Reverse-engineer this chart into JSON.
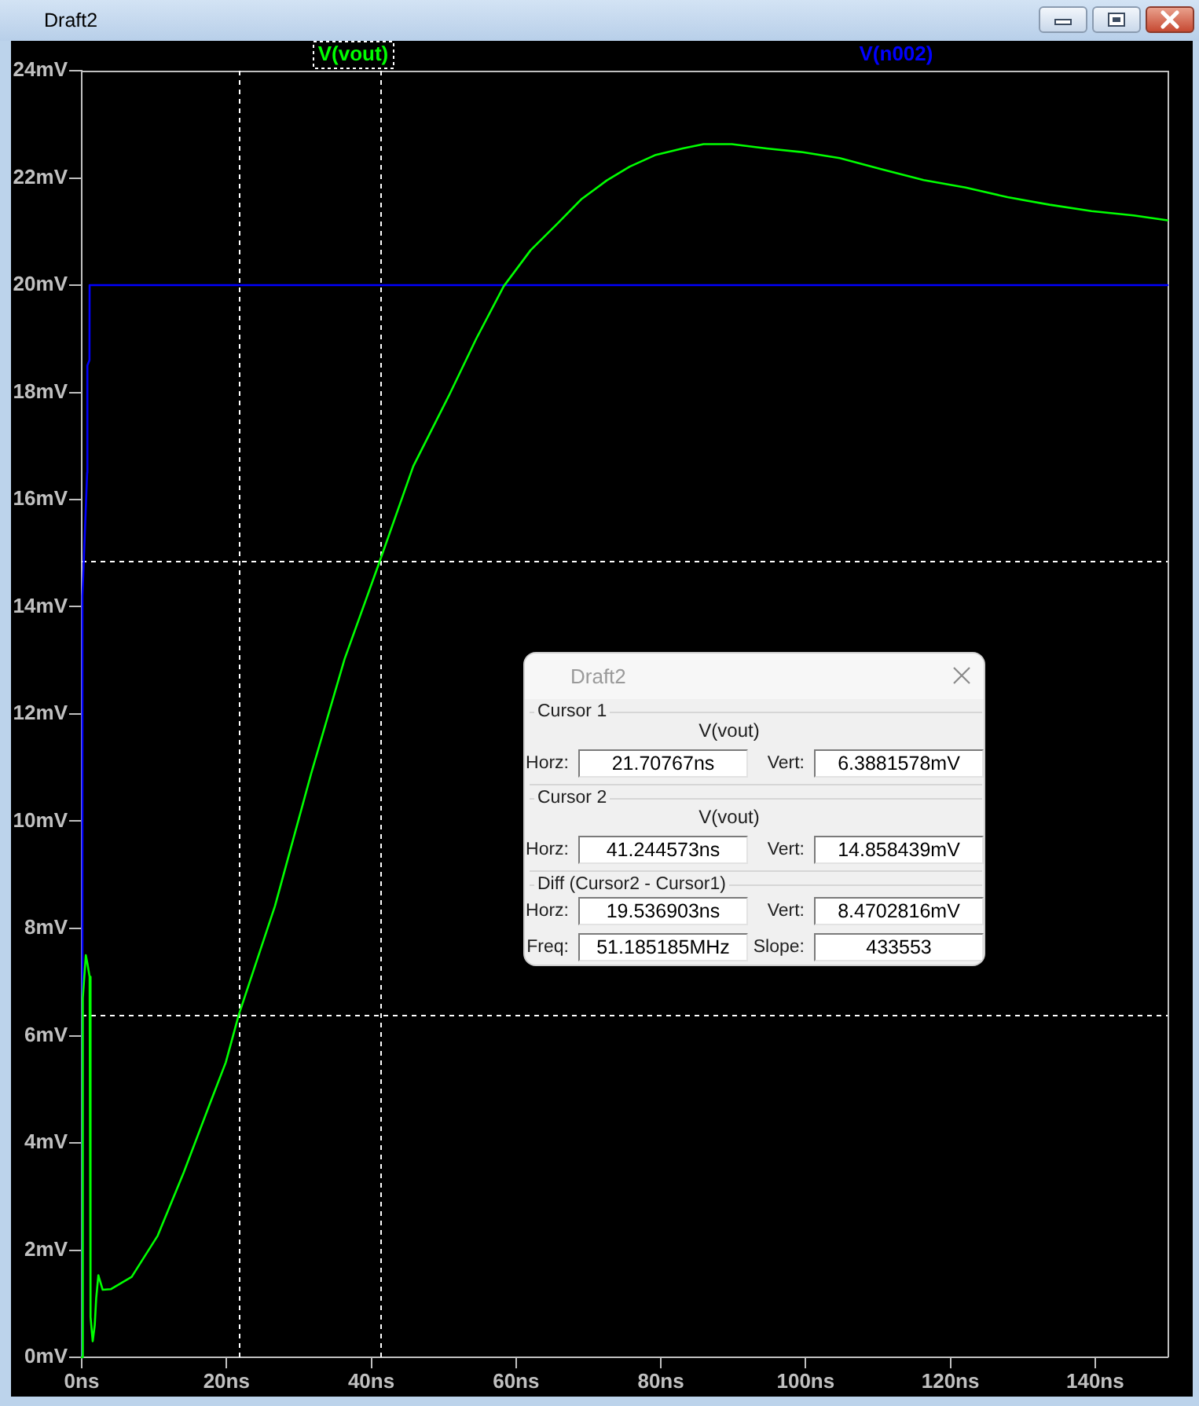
{
  "chart_data": {
    "type": "line",
    "title": "Draft2",
    "legend": "top",
    "xlim": [
      0,
      150
    ],
    "xticks": [
      {
        "value": 0,
        "label": "0ns"
      },
      {
        "value": 20,
        "label": "20ns"
      },
      {
        "value": 40,
        "label": "40ns"
      },
      {
        "value": 60,
        "label": "60ns"
      },
      {
        "value": 80,
        "label": "80ns"
      },
      {
        "value": 100,
        "label": "100ns"
      },
      {
        "value": 120,
        "label": "120ns"
      },
      {
        "value": 140,
        "label": "140ns"
      }
    ],
    "ylim": [
      0,
      24
    ],
    "yticks": [
      {
        "value": 0,
        "label": "0mV"
      },
      {
        "value": 2,
        "label": "2mV"
      },
      {
        "value": 4,
        "label": "4mV"
      },
      {
        "value": 6,
        "label": "6mV"
      },
      {
        "value": 8,
        "label": "8mV"
      },
      {
        "value": 10,
        "label": "10mV"
      },
      {
        "value": 12,
        "label": "12mV"
      },
      {
        "value": 14,
        "label": "14mV"
      },
      {
        "value": 16,
        "label": "16mV"
      },
      {
        "value": 18,
        "label": "18mV"
      },
      {
        "value": 20,
        "label": "20mV"
      },
      {
        "value": 22,
        "label": "22mV"
      },
      {
        "value": 24,
        "label": "24mV"
      }
    ],
    "series": [
      {
        "name": "V(vout)",
        "color": "#00ff00",
        "x": [
          0,
          0.15,
          0.57,
          0.78,
          1.09,
          1.22,
          1.52,
          1.8,
          2,
          2.3,
          2.9,
          4,
          6.9,
          10.5,
          14.1,
          17.7,
          19.9,
          21.7,
          26.7,
          31.7,
          36.3,
          41.2,
          45.8,
          50.8,
          54.5,
          58.3,
          62,
          65.8,
          69,
          72.5,
          75.7,
          79.3,
          83,
          85.9,
          89.8,
          94.6,
          99.6,
          104.7,
          110.5,
          116.3,
          122.1,
          127.9,
          133.7,
          139.5,
          145.3,
          150
        ],
        "values": [
          0,
          6.7,
          7.5,
          7.35,
          7.1,
          0.75,
          0.3,
          0.6,
          1.1,
          1.53,
          1.26,
          1.27,
          1.5,
          2.27,
          3.45,
          4.73,
          5.5,
          6.39,
          8.42,
          10.89,
          13.02,
          14.86,
          16.62,
          17.96,
          19.0,
          19.98,
          20.65,
          21.16,
          21.6,
          21.95,
          22.21,
          22.43,
          22.55,
          22.63,
          22.63,
          22.55,
          22.48,
          22.37,
          22.16,
          21.96,
          21.82,
          21.64,
          21.5,
          21.38,
          21.3,
          21.21
        ]
      },
      {
        "name": "V(n002)",
        "color": "#0000ff",
        "x": [
          0,
          0.1,
          0.75,
          0.78,
          1.07,
          1.09,
          150
        ],
        "values": [
          0,
          14.2,
          16.5,
          18.5,
          18.6,
          20,
          20
        ]
      }
    ],
    "ref_lines": [
      {
        "axis": "x",
        "value": 21.70767,
        "color": "#ffffff",
        "line_style": "dashed"
      },
      {
        "axis": "x",
        "value": 41.244573,
        "color": "#ffffff",
        "line_style": "dashed"
      },
      {
        "axis": "y",
        "value": 6.3881578,
        "color": "#ffffff",
        "line_style": "dashed"
      },
      {
        "axis": "y",
        "value": 14.858439,
        "color": "#ffffff",
        "line_style": "dashed"
      }
    ],
    "annotations": [
      "Draft2",
      "Cursor 1",
      "V(vout)",
      "Horz:",
      "21.70767ns",
      "Vert:",
      "6.3881578mV",
      "Cursor 2",
      "V(vout)",
      "Horz:",
      "41.244573ns",
      "Vert:",
      "14.858439mV",
      "Diff (Cursor2 - Cursor1)",
      "Horz:",
      "19.536903ns",
      "Vert:",
      "8.4702816mV",
      "Freq:",
      "51.185185MHz",
      "Slope:",
      "433553"
    ]
  }
}
